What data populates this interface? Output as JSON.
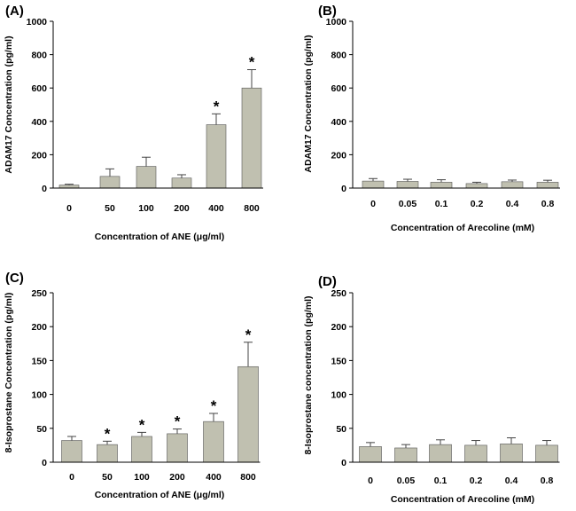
{
  "chart_data": [
    {
      "type": "bar",
      "panel": "(A)",
      "categories": [
        "0",
        "50",
        "100",
        "200",
        "400",
        "800"
      ],
      "values": [
        18,
        70,
        130,
        60,
        380,
        600
      ],
      "errors": [
        5,
        45,
        55,
        20,
        65,
        110
      ],
      "significant": [
        false,
        false,
        false,
        false,
        true,
        true
      ],
      "significance_marker": "*",
      "xlabel": "Concentration of ANE (μg/ml)",
      "ylabel": "ADAM17 Concentration (pg/ml)",
      "ylim": [
        0,
        1000
      ],
      "yticks": [
        0,
        200,
        400,
        600,
        800,
        1000
      ],
      "bar_color": "#c0c0b0",
      "grid": false
    },
    {
      "type": "bar",
      "panel": "(B)",
      "categories": [
        "0",
        "0.05",
        "0.1",
        "0.2",
        "0.4",
        "0.8"
      ],
      "values": [
        42,
        40,
        35,
        27,
        38,
        35
      ],
      "errors": [
        15,
        13,
        15,
        8,
        10,
        12
      ],
      "significant": [
        false,
        false,
        false,
        false,
        false,
        false
      ],
      "significance_marker": "*",
      "xlabel": "Concentration of Arecoline (mM)",
      "ylabel": "ADAM17 Concentration (pg/ml)",
      "ylim": [
        0,
        1000
      ],
      "yticks": [
        0,
        200,
        400,
        600,
        800,
        1000
      ],
      "bar_color": "#c0c0b0",
      "grid": false
    },
    {
      "type": "bar",
      "panel": "(C)",
      "categories": [
        "0",
        "50",
        "100",
        "200",
        "400",
        "800"
      ],
      "values": [
        32,
        26,
        38,
        42,
        60,
        141
      ],
      "errors": [
        6,
        5,
        6,
        7,
        12,
        36
      ],
      "significant": [
        false,
        true,
        true,
        true,
        true,
        true
      ],
      "significance_marker": "*",
      "xlabel": "Concentration of ANE (μg/ml)",
      "ylabel": "8-Isoprostane Concentration (pg/ml)",
      "ylim": [
        0,
        250
      ],
      "yticks": [
        0,
        50,
        100,
        150,
        200,
        250
      ],
      "bar_color": "#c0c0b0",
      "grid": false
    },
    {
      "type": "bar",
      "panel": "(D)",
      "categories": [
        "0",
        "0.05",
        "0.1",
        "0.2",
        "0.4",
        "0.8"
      ],
      "values": [
        23,
        21,
        26,
        25,
        27,
        25
      ],
      "errors": [
        6,
        5,
        7,
        7,
        9,
        7
      ],
      "significant": [
        false,
        false,
        false,
        false,
        false,
        false
      ],
      "significance_marker": "*",
      "xlabel": "Concentration of Arecoline (mM)",
      "ylabel": "8-Isoprostane concentration (pg/ml)",
      "ylim": [
        0,
        250
      ],
      "yticks": [
        0,
        50,
        100,
        150,
        200,
        250
      ],
      "bar_color": "#c0c0b0",
      "grid": false
    }
  ]
}
